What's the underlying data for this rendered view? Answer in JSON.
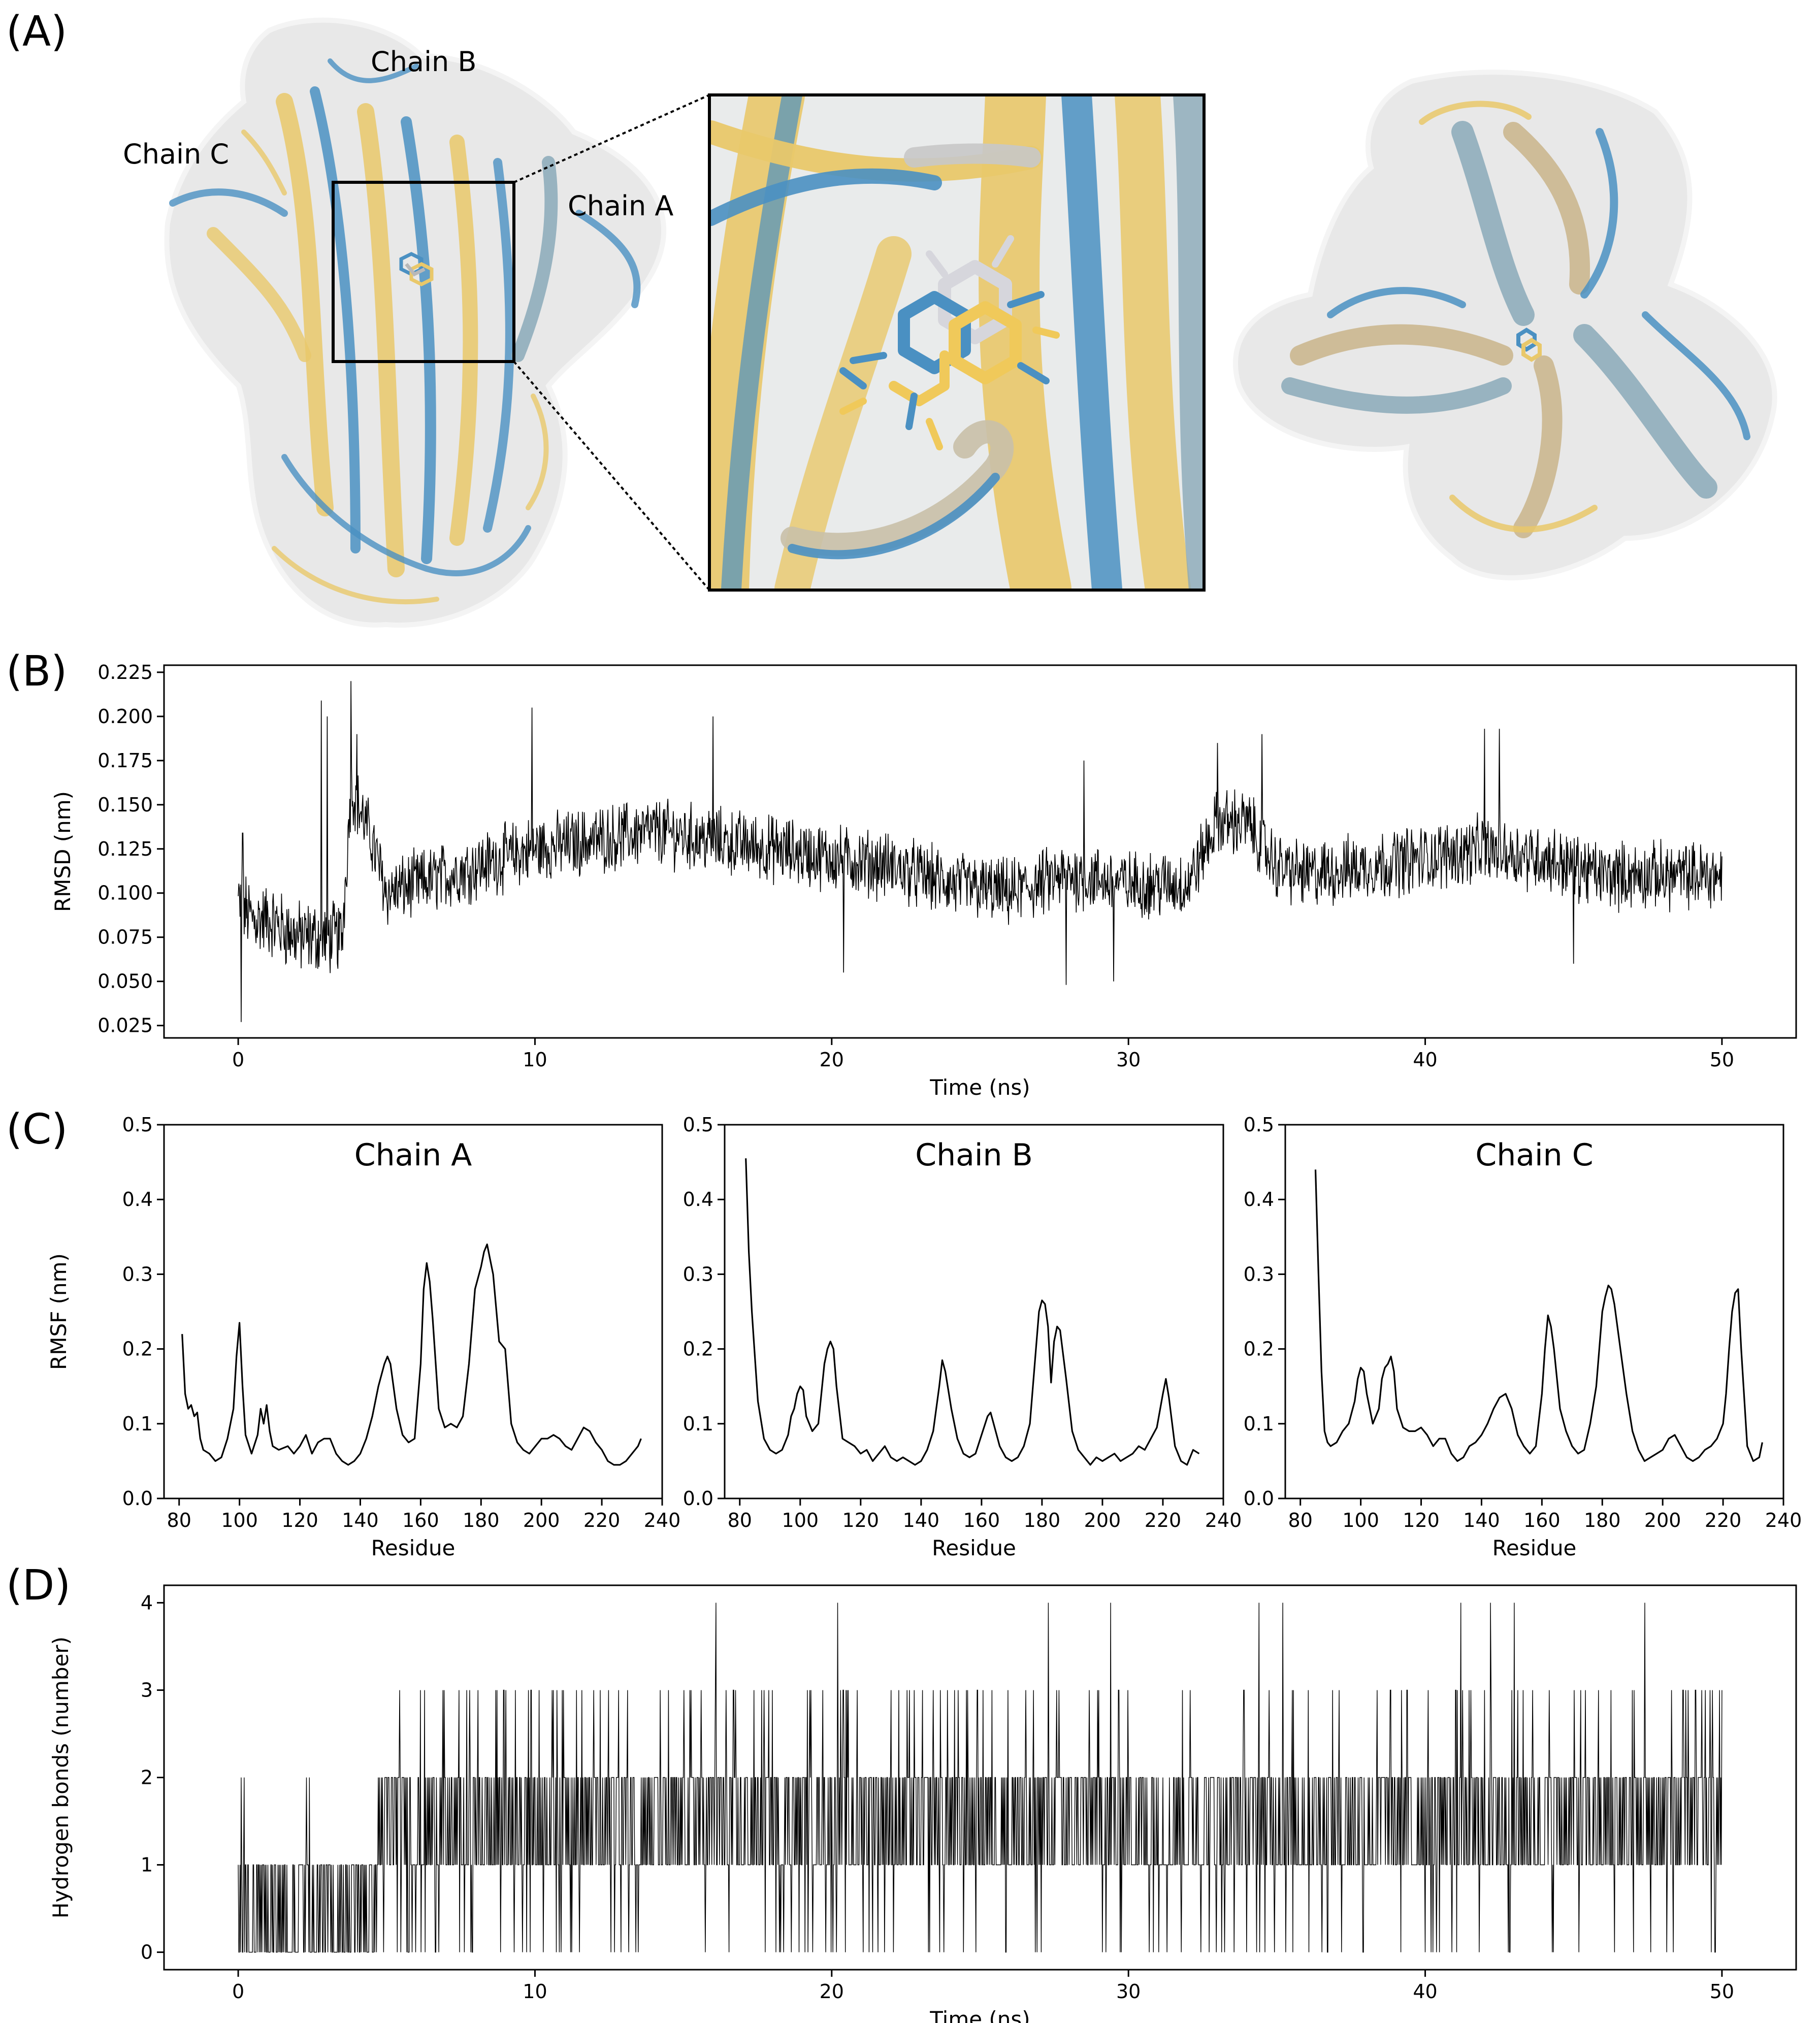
{
  "panels": {
    "a": {
      "label": "(A)",
      "chain_labels": [
        "Chain B",
        "Chain C",
        "Chain A"
      ],
      "colors": {
        "blue": "#4a90c2",
        "gold": "#e9c86a",
        "gray": "#b8b8b8",
        "surface": "#e6e6e6"
      }
    },
    "b": {
      "label": "(B)"
    },
    "c": {
      "label": "(C)"
    },
    "d": {
      "label": "(D)"
    }
  },
  "chart_data": [
    {
      "id": "rmsd",
      "type": "line",
      "title": "",
      "xlabel": "Time (ns)",
      "ylabel": "RMSD (nm)",
      "xlim": [
        -2.5,
        52.5
      ],
      "ylim": [
        0.018,
        0.229
      ],
      "xticks": [
        0,
        10,
        20,
        30,
        40,
        50
      ],
      "yticks": [
        0.025,
        0.05,
        0.075,
        0.1,
        0.125,
        0.15,
        0.175,
        0.2,
        0.225
      ],
      "ytick_labels": [
        "0.025",
        "0.050",
        "0.075",
        "0.100",
        "0.125",
        "0.150",
        "0.175",
        "0.200",
        "0.225"
      ],
      "x_range": [
        0,
        50
      ],
      "n_points": 2501,
      "grid": false,
      "trend": {
        "x": [
          0,
          0.5,
          1,
          2,
          2.8,
          3.5,
          3.8,
          4.5,
          5,
          6,
          8,
          10,
          12,
          14,
          16,
          18,
          20,
          22,
          24,
          26,
          28,
          30,
          32,
          33,
          34,
          35,
          36,
          38,
          40,
          42,
          44,
          46,
          48,
          50
        ],
        "y": [
          0.095,
          0.085,
          0.085,
          0.075,
          0.075,
          0.075,
          0.16,
          0.13,
          0.1,
          0.105,
          0.115,
          0.125,
          0.13,
          0.135,
          0.13,
          0.125,
          0.12,
          0.115,
          0.105,
          0.1,
          0.11,
          0.105,
          0.105,
          0.14,
          0.14,
          0.115,
          0.11,
          0.115,
          0.12,
          0.125,
          0.12,
          0.11,
          0.11,
          0.11
        ]
      },
      "peaks": [
        {
          "x": 0.1,
          "y": 0.027
        },
        {
          "x": 0.15,
          "y": 0.134
        },
        {
          "x": 2.8,
          "y": 0.209
        },
        {
          "x": 3.0,
          "y": 0.2
        },
        {
          "x": 3.8,
          "y": 0.22
        },
        {
          "x": 4.0,
          "y": 0.19
        },
        {
          "x": 9.9,
          "y": 0.205
        },
        {
          "x": 16.0,
          "y": 0.2
        },
        {
          "x": 20.4,
          "y": 0.055
        },
        {
          "x": 27.9,
          "y": 0.048
        },
        {
          "x": 28.5,
          "y": 0.175
        },
        {
          "x": 29.5,
          "y": 0.05
        },
        {
          "x": 33.0,
          "y": 0.185
        },
        {
          "x": 34.5,
          "y": 0.19
        },
        {
          "x": 42.0,
          "y": 0.193
        },
        {
          "x": 42.5,
          "y": 0.193
        },
        {
          "x": 45.0,
          "y": 0.06
        }
      ]
    },
    {
      "id": "rmsf_a",
      "type": "line",
      "title": "Chain A",
      "xlabel": "Residue",
      "ylabel": "RMSF (nm)",
      "xlim": [
        75,
        240
      ],
      "ylim": [
        0,
        0.5
      ],
      "xticks": [
        80,
        100,
        120,
        140,
        160,
        180,
        200,
        220,
        240
      ],
      "yticks": [
        0,
        0.1,
        0.2,
        0.3,
        0.4,
        0.5
      ],
      "ytick_labels": [
        "0.0",
        "0.1",
        "0.2",
        "0.3",
        "0.4",
        "0.5"
      ],
      "x": [
        81,
        82,
        83,
        84,
        85,
        86,
        87,
        88,
        90,
        92,
        94,
        96,
        98,
        99,
        100,
        101,
        102,
        104,
        106,
        107,
        108,
        109,
        110,
        111,
        113,
        116,
        118,
        120,
        122,
        124,
        126,
        128,
        130,
        132,
        134,
        136,
        138,
        140,
        142,
        144,
        146,
        148,
        149,
        150,
        152,
        154,
        156,
        158,
        160,
        161,
        162,
        163,
        164,
        166,
        168,
        170,
        172,
        174,
        176,
        178,
        180,
        181,
        182,
        183,
        184,
        186,
        188,
        190,
        192,
        194,
        196,
        198,
        200,
        202,
        204,
        206,
        208,
        210,
        212,
        214,
        216,
        218,
        220,
        222,
        224,
        226,
        228,
        230,
        232,
        233
      ],
      "values": [
        0.22,
        0.14,
        0.12,
        0.125,
        0.11,
        0.115,
        0.08,
        0.065,
        0.06,
        0.05,
        0.055,
        0.08,
        0.12,
        0.19,
        0.235,
        0.15,
        0.085,
        0.06,
        0.085,
        0.12,
        0.1,
        0.125,
        0.09,
        0.07,
        0.065,
        0.07,
        0.06,
        0.07,
        0.085,
        0.06,
        0.075,
        0.08,
        0.08,
        0.06,
        0.05,
        0.045,
        0.05,
        0.06,
        0.08,
        0.11,
        0.15,
        0.18,
        0.19,
        0.18,
        0.12,
        0.085,
        0.075,
        0.08,
        0.18,
        0.28,
        0.315,
        0.29,
        0.24,
        0.12,
        0.095,
        0.1,
        0.095,
        0.11,
        0.18,
        0.28,
        0.31,
        0.33,
        0.34,
        0.32,
        0.3,
        0.21,
        0.2,
        0.1,
        0.075,
        0.065,
        0.06,
        0.07,
        0.08,
        0.08,
        0.085,
        0.08,
        0.07,
        0.065,
        0.08,
        0.095,
        0.09,
        0.075,
        0.065,
        0.05,
        0.045,
        0.045,
        0.05,
        0.06,
        0.07,
        0.08
      ]
    },
    {
      "id": "rmsf_b",
      "type": "line",
      "title": "Chain B",
      "xlabel": "Residue",
      "ylabel": "",
      "xlim": [
        75,
        240
      ],
      "ylim": [
        0,
        0.5
      ],
      "xticks": [
        80,
        100,
        120,
        140,
        160,
        180,
        200,
        220,
        240
      ],
      "yticks": [
        0,
        0.1,
        0.2,
        0.3,
        0.4,
        0.5
      ],
      "ytick_labels": [
        "0.0",
        "0.1",
        "0.2",
        "0.3",
        "0.4",
        "0.5"
      ],
      "x": [
        82,
        83,
        84,
        85,
        86,
        88,
        90,
        92,
        94,
        96,
        97,
        98,
        99,
        100,
        101,
        102,
        104,
        106,
        108,
        109,
        110,
        111,
        112,
        114,
        116,
        118,
        120,
        122,
        124,
        126,
        128,
        130,
        132,
        134,
        136,
        138,
        140,
        142,
        144,
        146,
        147,
        148,
        150,
        152,
        154,
        156,
        158,
        160,
        162,
        163,
        164,
        166,
        168,
        170,
        172,
        174,
        176,
        178,
        179,
        180,
        181,
        182,
        183,
        184,
        185,
        186,
        188,
        190,
        192,
        194,
        196,
        198,
        200,
        202,
        204,
        206,
        208,
        210,
        212,
        214,
        216,
        218,
        220,
        221,
        222,
        224,
        226,
        228,
        230,
        232
      ],
      "values": [
        0.455,
        0.33,
        0.25,
        0.19,
        0.13,
        0.08,
        0.065,
        0.06,
        0.065,
        0.085,
        0.11,
        0.12,
        0.14,
        0.15,
        0.145,
        0.11,
        0.09,
        0.1,
        0.18,
        0.2,
        0.21,
        0.2,
        0.15,
        0.08,
        0.075,
        0.07,
        0.06,
        0.065,
        0.05,
        0.06,
        0.07,
        0.055,
        0.05,
        0.055,
        0.05,
        0.045,
        0.05,
        0.065,
        0.09,
        0.15,
        0.185,
        0.17,
        0.12,
        0.08,
        0.06,
        0.055,
        0.06,
        0.085,
        0.11,
        0.115,
        0.1,
        0.07,
        0.055,
        0.05,
        0.055,
        0.07,
        0.1,
        0.2,
        0.25,
        0.265,
        0.26,
        0.23,
        0.155,
        0.21,
        0.23,
        0.225,
        0.16,
        0.09,
        0.065,
        0.055,
        0.045,
        0.055,
        0.05,
        0.055,
        0.06,
        0.05,
        0.055,
        0.06,
        0.07,
        0.065,
        0.08,
        0.095,
        0.14,
        0.16,
        0.135,
        0.07,
        0.05,
        0.045,
        0.065,
        0.06
      ]
    },
    {
      "id": "rmsf_c",
      "type": "line",
      "title": "Chain C",
      "xlabel": "Residue",
      "ylabel": "",
      "xlim": [
        75,
        240
      ],
      "ylim": [
        0,
        0.5
      ],
      "xticks": [
        80,
        100,
        120,
        140,
        160,
        180,
        200,
        220,
        240
      ],
      "yticks": [
        0,
        0.1,
        0.2,
        0.3,
        0.4,
        0.5
      ],
      "ytick_labels": [
        "0.0",
        "0.1",
        "0.2",
        "0.3",
        "0.4",
        "0.5"
      ],
      "x": [
        85,
        86,
        87,
        88,
        89,
        90,
        92,
        94,
        96,
        98,
        99,
        100,
        101,
        102,
        104,
        106,
        107,
        108,
        109,
        110,
        111,
        112,
        114,
        116,
        118,
        120,
        122,
        124,
        126,
        128,
        130,
        132,
        134,
        136,
        138,
        140,
        142,
        144,
        146,
        148,
        150,
        152,
        154,
        156,
        158,
        160,
        161,
        162,
        163,
        164,
        166,
        168,
        170,
        172,
        174,
        176,
        178,
        180,
        181,
        182,
        183,
        184,
        186,
        188,
        190,
        192,
        194,
        196,
        198,
        200,
        202,
        204,
        206,
        208,
        210,
        212,
        214,
        216,
        218,
        220,
        221,
        222,
        223,
        224,
        225,
        226,
        228,
        230,
        232,
        233
      ],
      "values": [
        0.44,
        0.3,
        0.17,
        0.09,
        0.075,
        0.07,
        0.075,
        0.09,
        0.1,
        0.13,
        0.16,
        0.175,
        0.17,
        0.14,
        0.1,
        0.12,
        0.16,
        0.175,
        0.18,
        0.19,
        0.17,
        0.12,
        0.095,
        0.09,
        0.09,
        0.095,
        0.085,
        0.07,
        0.08,
        0.08,
        0.06,
        0.05,
        0.055,
        0.07,
        0.075,
        0.085,
        0.1,
        0.12,
        0.135,
        0.14,
        0.12,
        0.085,
        0.07,
        0.06,
        0.07,
        0.14,
        0.2,
        0.245,
        0.23,
        0.2,
        0.12,
        0.09,
        0.07,
        0.06,
        0.065,
        0.1,
        0.15,
        0.25,
        0.27,
        0.285,
        0.28,
        0.26,
        0.2,
        0.14,
        0.09,
        0.065,
        0.05,
        0.055,
        0.06,
        0.065,
        0.08,
        0.085,
        0.07,
        0.055,
        0.05,
        0.055,
        0.065,
        0.07,
        0.08,
        0.1,
        0.14,
        0.2,
        0.25,
        0.275,
        0.28,
        0.2,
        0.07,
        0.05,
        0.055,
        0.075
      ]
    },
    {
      "id": "hbonds",
      "type": "line",
      "title": "",
      "xlabel": "Time (ns)",
      "ylabel": "Hydrogen bonds (number)",
      "xlim": [
        -2.5,
        52.5
      ],
      "ylim": [
        -0.2,
        4.2
      ],
      "xticks": [
        0,
        10,
        20,
        30,
        40,
        50
      ],
      "yticks": [
        0,
        1,
        2,
        3,
        4
      ],
      "ytick_labels": [
        "0",
        "1",
        "2",
        "3",
        "4"
      ],
      "x_range": [
        0,
        50
      ],
      "n_points": 2501,
      "grid": false,
      "levels": [
        0,
        1,
        2,
        3,
        4
      ],
      "phases": [
        {
          "from": 0,
          "to": 4.7,
          "typical": [
            0,
            1
          ],
          "occasional": 2
        },
        {
          "from": 4.7,
          "to": 50,
          "typical": [
            1,
            2
          ],
          "occasional": 3
        }
      ],
      "spikes_to_4": [
        16.1,
        20.2,
        27.3,
        29.4,
        34.4,
        35.2,
        41.2,
        42.2,
        43.0,
        47.4
      ],
      "spikes_to_2_early": [
        0.1,
        0.2,
        2.3,
        2.4
      ]
    }
  ]
}
